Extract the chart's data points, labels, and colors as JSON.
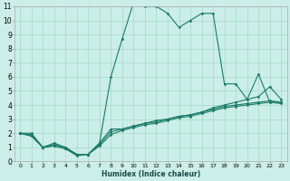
{
  "xlabel": "Humidex (Indice chaleur)",
  "ylabel": "",
  "bg_color": "#cceee8",
  "grid_color": "#aaddcc",
  "line_color": "#1a7a6a",
  "xlim": [
    -0.5,
    23.5
  ],
  "ylim": [
    0,
    11
  ],
  "xticks": [
    0,
    1,
    2,
    3,
    4,
    5,
    6,
    7,
    8,
    9,
    10,
    11,
    12,
    13,
    14,
    15,
    16,
    17,
    18,
    19,
    20,
    21,
    22,
    23
  ],
  "yticks": [
    0,
    1,
    2,
    3,
    4,
    5,
    6,
    7,
    8,
    9,
    10,
    11
  ],
  "lines": [
    {
      "x": [
        0,
        1,
        2,
        3,
        4,
        5,
        6,
        7,
        8,
        9,
        10,
        11,
        12,
        13,
        14,
        15,
        16,
        17,
        18,
        19,
        20,
        21,
        22,
        23
      ],
      "y": [
        2.0,
        2.0,
        1.0,
        1.3,
        1.0,
        0.5,
        0.5,
        1.3,
        6.0,
        8.7,
        11.3,
        11.0,
        11.0,
        10.5,
        9.5,
        10.0,
        10.5,
        10.5,
        5.5,
        5.5,
        4.4,
        6.2,
        4.2,
        4.2
      ]
    },
    {
      "x": [
        0,
        1,
        2,
        3,
        4,
        5,
        6,
        7,
        8,
        9,
        10,
        11,
        12,
        13,
        14,
        15,
        16,
        17,
        18,
        19,
        20,
        21,
        22,
        23
      ],
      "y": [
        2.0,
        1.8,
        1.0,
        1.2,
        1.0,
        0.5,
        0.5,
        1.3,
        2.3,
        2.3,
        2.5,
        2.7,
        2.9,
        3.0,
        3.2,
        3.3,
        3.5,
        3.8,
        4.0,
        4.2,
        4.4,
        4.6,
        5.3,
        4.4
      ]
    },
    {
      "x": [
        0,
        1,
        2,
        3,
        4,
        5,
        6,
        7,
        8,
        9,
        10,
        11,
        12,
        13,
        14,
        15,
        16,
        17,
        18,
        19,
        20,
        21,
        22,
        23
      ],
      "y": [
        2.0,
        1.9,
        1.0,
        1.1,
        0.9,
        0.5,
        0.5,
        1.2,
        2.1,
        2.3,
        2.5,
        2.7,
        2.8,
        3.0,
        3.2,
        3.3,
        3.5,
        3.7,
        3.9,
        4.0,
        4.1,
        4.2,
        4.3,
        4.2
      ]
    },
    {
      "x": [
        0,
        1,
        2,
        3,
        4,
        5,
        6,
        7,
        8,
        9,
        10,
        11,
        12,
        13,
        14,
        15,
        16,
        17,
        18,
        19,
        20,
        21,
        22,
        23
      ],
      "y": [
        2.0,
        1.8,
        1.0,
        1.1,
        0.9,
        0.4,
        0.5,
        1.1,
        1.9,
        2.2,
        2.4,
        2.6,
        2.7,
        2.9,
        3.1,
        3.2,
        3.4,
        3.6,
        3.8,
        3.9,
        4.0,
        4.1,
        4.2,
        4.1
      ]
    }
  ]
}
